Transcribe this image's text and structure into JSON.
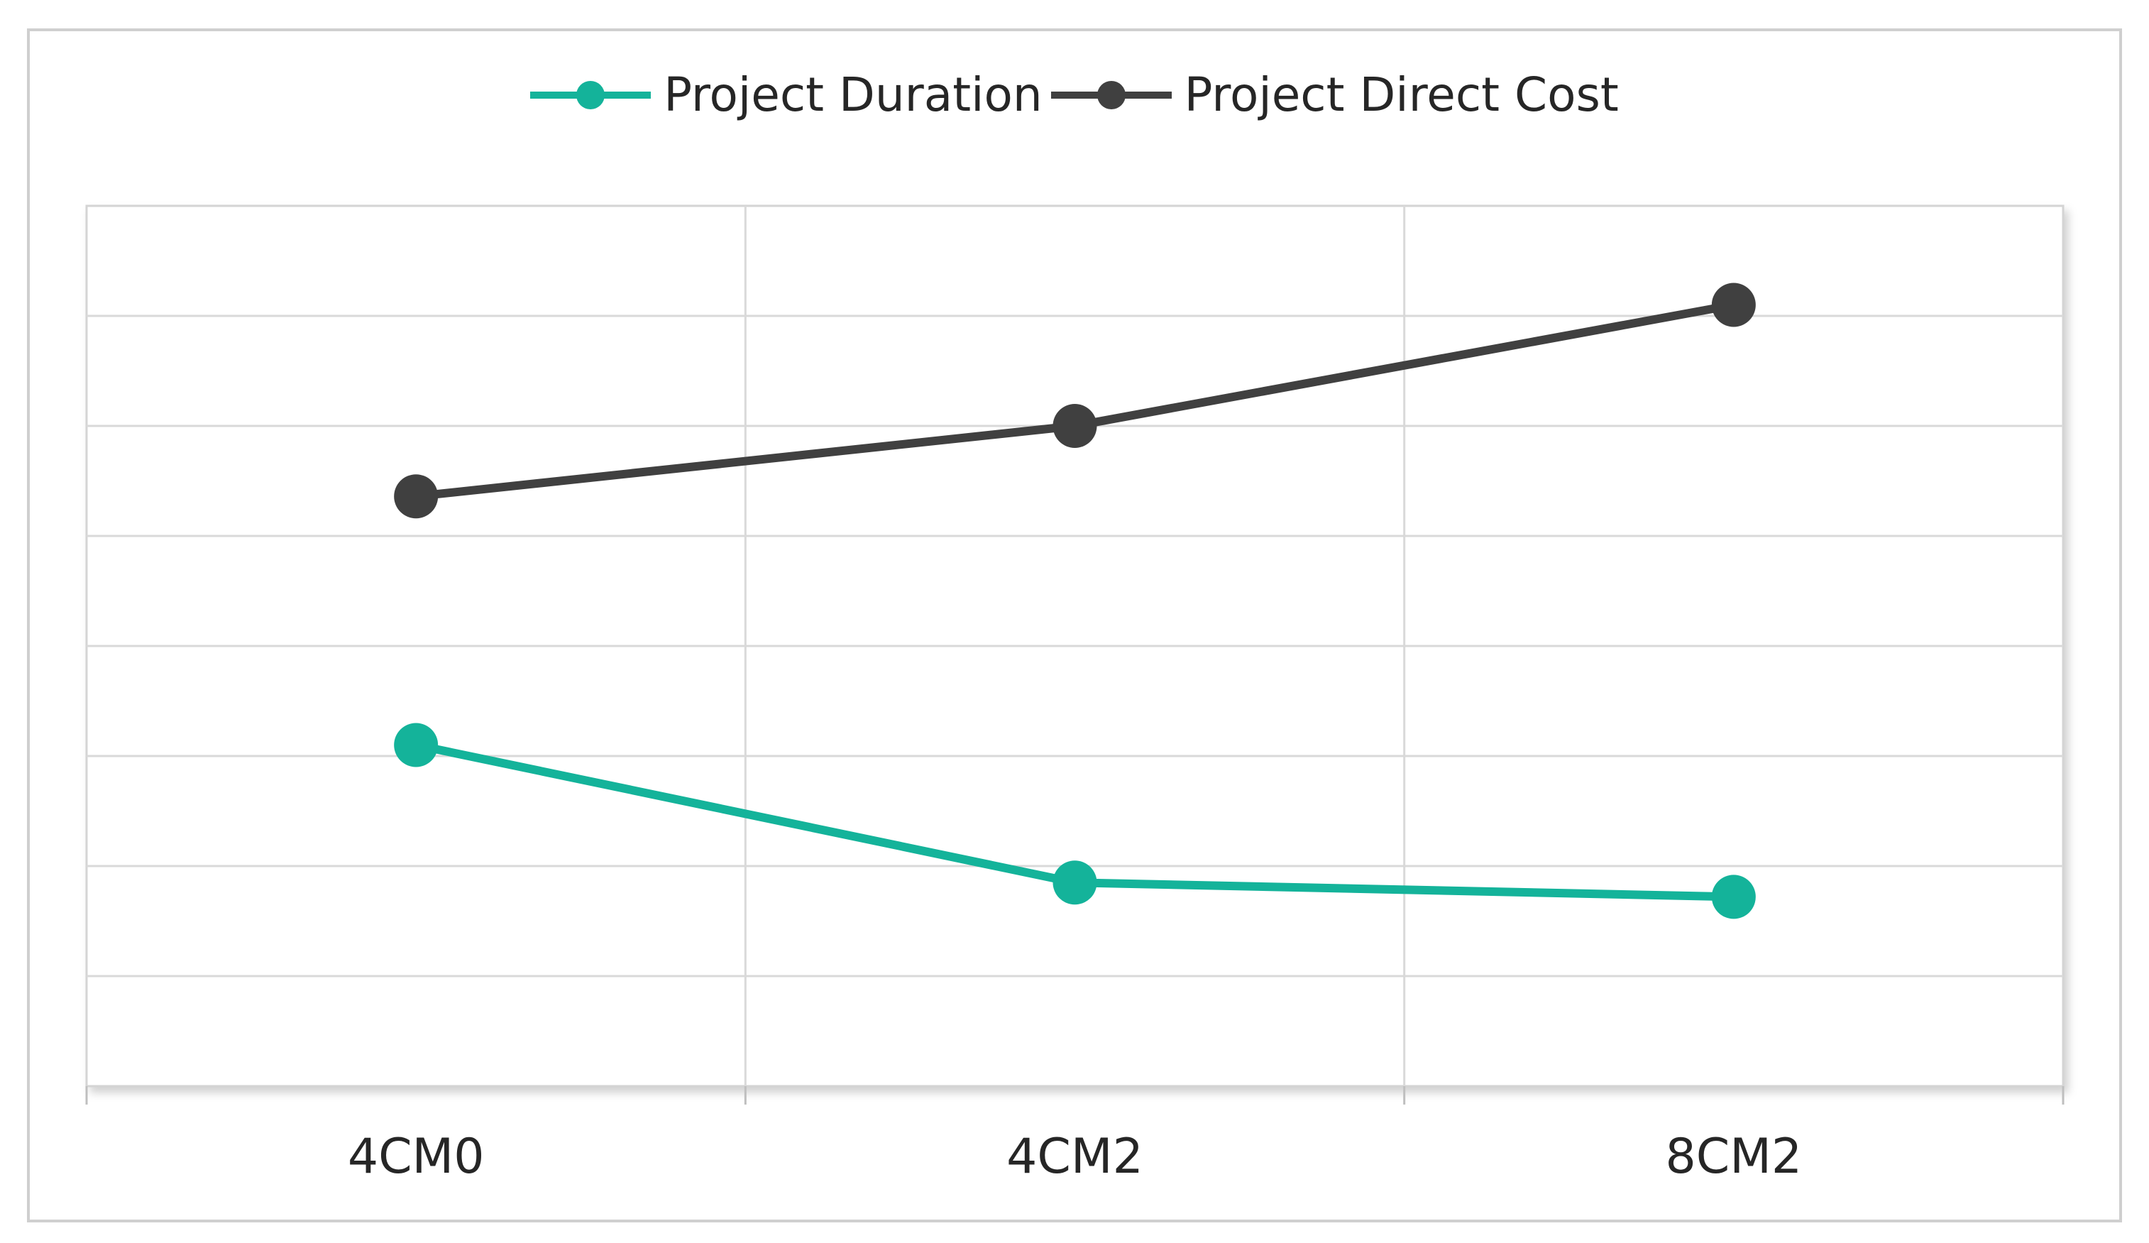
{
  "chart_data": {
    "type": "line",
    "title": "",
    "xlabel": "",
    "ylabel": "",
    "categories": [
      "4CM0",
      "4CM2",
      "8CM2"
    ],
    "ylim": [
      0,
      8
    ],
    "y_tick_labels_shown": false,
    "grid": true,
    "legend_position": "top-center",
    "series": [
      {
        "name": "Project Duration",
        "color": "#14b39a",
        "values": [
          3.1,
          1.85,
          1.72
        ]
      },
      {
        "name": "Project Direct Cost",
        "color": "#404040",
        "values": [
          5.36,
          6.0,
          7.1
        ]
      }
    ]
  }
}
